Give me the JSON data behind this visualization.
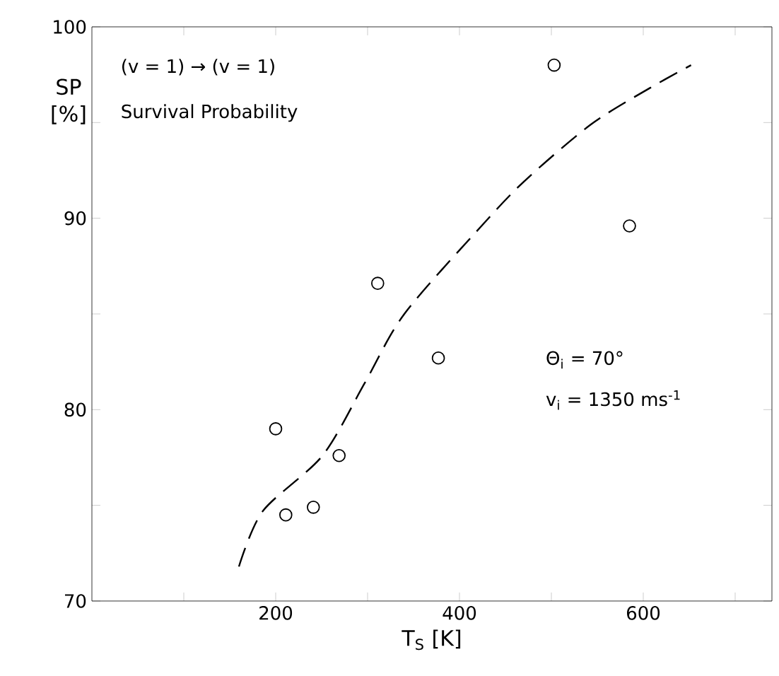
{
  "chart_data": {
    "type": "scatter",
    "xlabel": "T$_{S}$ [K]",
    "ylabel": "SP [%]",
    "xlim": [
      0,
      740
    ],
    "ylim": [
      70,
      100
    ],
    "xticks": [
      {
        "value": 100,
        "label": null
      },
      200,
      {
        "value": 300,
        "label": null
      },
      400,
      {
        "value": 500,
        "label": null
      },
      600,
      {
        "value": 700,
        "label": null
      }
    ],
    "yticks": [
      70,
      {
        "value": 75,
        "label": null
      },
      80,
      {
        "value": 85,
        "label": null
      },
      90,
      {
        "value": 95,
        "label": null
      },
      100
    ],
    "grid": false,
    "marker": "circle",
    "series": [
      {
        "color": "#000000",
        "x": [
          200,
          211,
          241,
          269,
          311,
          377,
          503,
          585
        ],
        "values": [
          79.0,
          74.5,
          74.9,
          77.6,
          86.6,
          82.7,
          98.0,
          89.6
        ]
      },
      {
        "type": "line",
        "color": "#000000",
        "marker": "none",
        "line_style": "dashed",
        "x": [
          160,
          186,
          251,
          297,
          340,
          424,
          472,
          543,
          607,
          652
        ],
        "values": [
          71.8,
          74.7,
          77.6,
          81.4,
          85.0,
          89.6,
          92.0,
          94.9,
          96.8,
          98.0
        ]
      }
    ],
    "annotations": [
      "(v = 1) → (v = 1)",
      "Survival Probability",
      "Θ$_{i}$ = 70°",
      "v$_{i}$ = 1350 ms$^{-1}$"
    ]
  }
}
